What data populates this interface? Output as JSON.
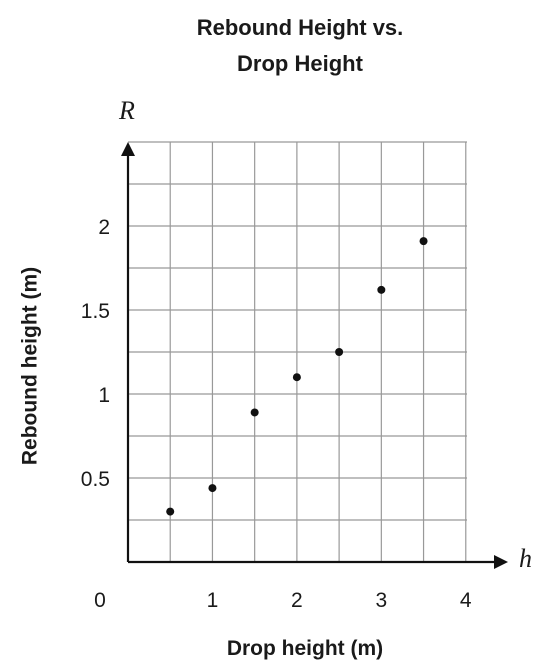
{
  "chart_data": {
    "type": "scatter",
    "title": [
      "Rebound Height vs.",
      "Drop Height"
    ],
    "xlabel": "Drop height (m)",
    "ylabel": "Rebound height (m)",
    "x_symbol": "h",
    "y_symbol": "R",
    "origin_label": "0",
    "xlim": [
      0,
      4.5
    ],
    "ylim": [
      0,
      2.5
    ],
    "x_grid_step": 0.5,
    "y_grid_step": 0.25,
    "x_ticks": [
      {
        "value": 1,
        "label": "1"
      },
      {
        "value": 2,
        "label": "2"
      },
      {
        "value": 3,
        "label": "3"
      },
      {
        "value": 4,
        "label": "4"
      }
    ],
    "y_ticks": [
      {
        "value": 0.5,
        "label": "0.5"
      },
      {
        "value": 1,
        "label": "1"
      },
      {
        "value": 1.5,
        "label": "1.5"
      },
      {
        "value": 2,
        "label": "2"
      }
    ],
    "grid": true,
    "grid_color": "#999999",
    "axis_color": "#111111",
    "point_color": "#111111",
    "points": [
      {
        "x": 0.5,
        "y": 0.3
      },
      {
        "x": 1.0,
        "y": 0.44
      },
      {
        "x": 1.5,
        "y": 0.89
      },
      {
        "x": 2.0,
        "y": 1.1
      },
      {
        "x": 2.5,
        "y": 1.25
      },
      {
        "x": 3.0,
        "y": 1.62
      },
      {
        "x": 3.5,
        "y": 1.91
      }
    ]
  }
}
